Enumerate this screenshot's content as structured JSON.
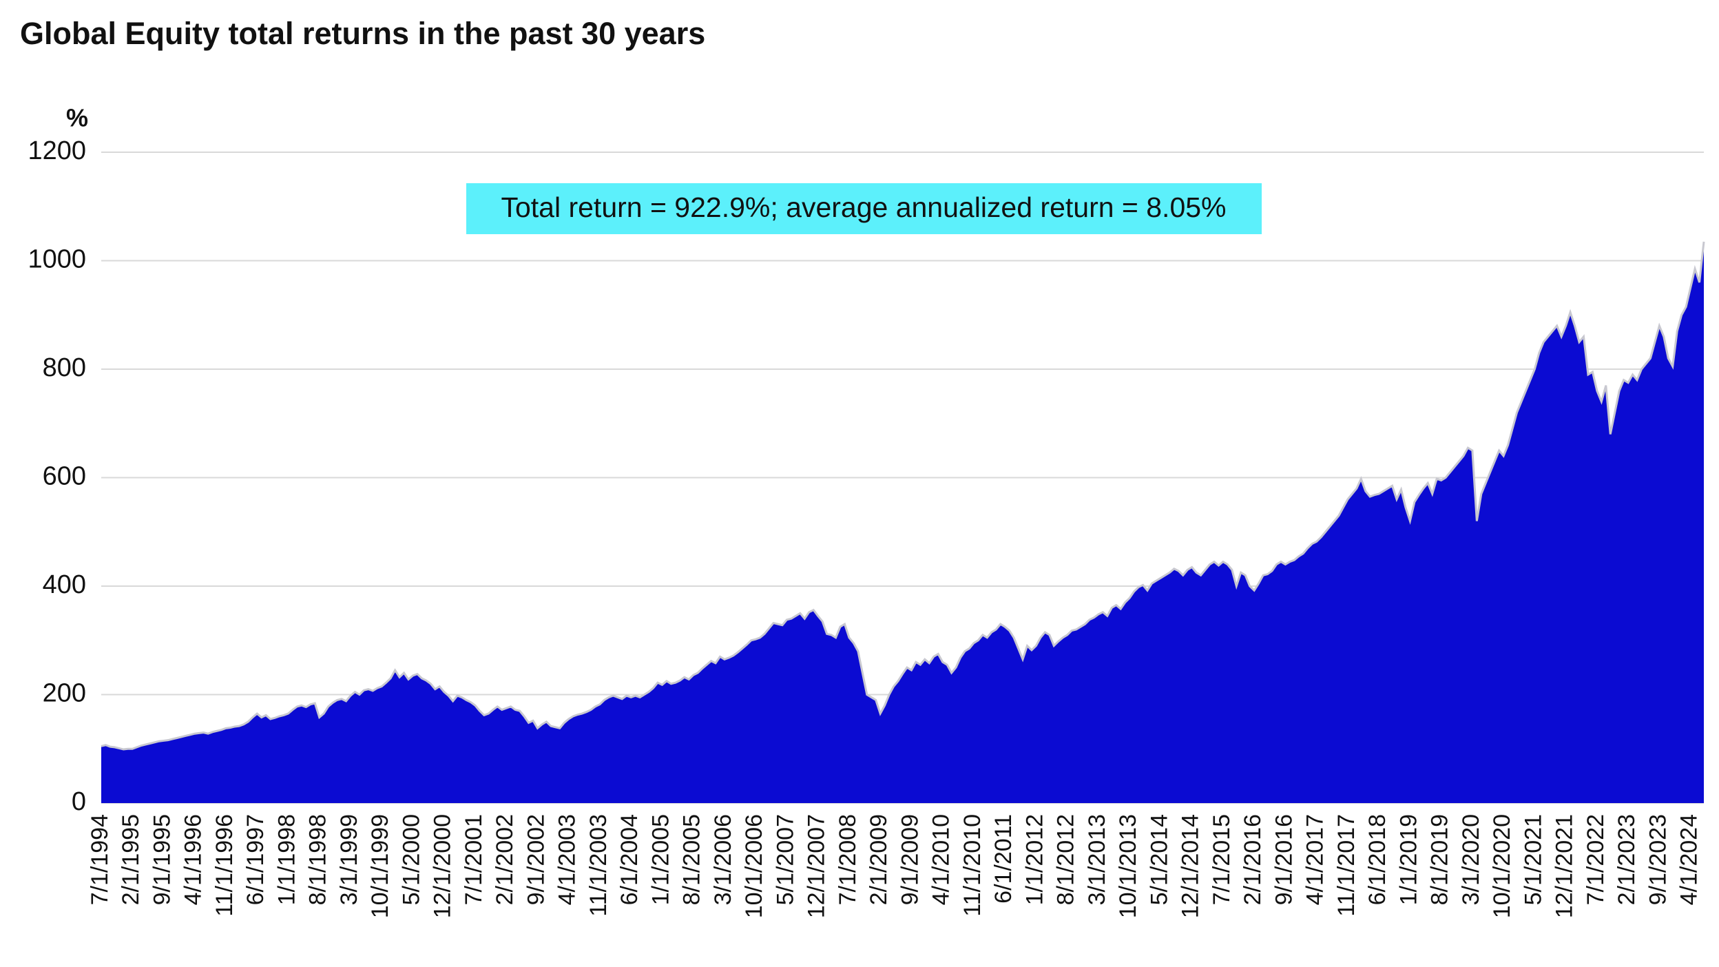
{
  "chart_data": {
    "type": "area",
    "title": "Global Equity total returns in the past 30 years",
    "y_label": "%",
    "annotation": "Total return = 922.9%; average annualized return = 8.05%",
    "ylim": [
      0,
      1200
    ],
    "yticks": [
      0,
      200,
      400,
      600,
      800,
      1000,
      1200
    ],
    "grid": true,
    "categories": [
      "7/1/1994",
      null,
      null,
      null,
      null,
      null,
      null,
      "2/1/1995",
      null,
      null,
      null,
      null,
      null,
      null,
      "9/1/1995",
      null,
      null,
      null,
      null,
      null,
      null,
      "4/1/1996",
      null,
      null,
      null,
      null,
      null,
      null,
      "11/1/1996",
      null,
      null,
      null,
      null,
      null,
      null,
      "6/1/1997",
      null,
      null,
      null,
      null,
      null,
      null,
      "1/1/1998",
      null,
      null,
      null,
      null,
      null,
      null,
      "8/1/1998",
      null,
      null,
      null,
      null,
      null,
      null,
      "3/1/1999",
      null,
      null,
      null,
      null,
      null,
      null,
      "10/1/1999",
      null,
      null,
      null,
      null,
      null,
      null,
      "5/1/2000",
      null,
      null,
      null,
      null,
      null,
      null,
      "12/1/2000",
      null,
      null,
      null,
      null,
      null,
      null,
      "7/1/2001",
      null,
      null,
      null,
      null,
      null,
      null,
      "2/1/2002",
      null,
      null,
      null,
      null,
      null,
      null,
      "9/1/2002",
      null,
      null,
      null,
      null,
      null,
      null,
      "4/1/2003",
      null,
      null,
      null,
      null,
      null,
      null,
      "11/1/2003",
      null,
      null,
      null,
      null,
      null,
      null,
      "6/1/2004",
      null,
      null,
      null,
      null,
      null,
      null,
      "1/1/2005",
      null,
      null,
      null,
      null,
      null,
      null,
      "8/1/2005",
      null,
      null,
      null,
      null,
      null,
      null,
      "3/1/2006",
      null,
      null,
      null,
      null,
      null,
      null,
      "10/1/2006",
      null,
      null,
      null,
      null,
      null,
      null,
      "5/1/2007",
      null,
      null,
      null,
      null,
      null,
      null,
      "12/1/2007",
      null,
      null,
      null,
      null,
      null,
      null,
      "7/1/2008",
      null,
      null,
      null,
      null,
      null,
      null,
      "2/1/2009",
      null,
      null,
      null,
      null,
      null,
      null,
      "9/1/2009",
      null,
      null,
      null,
      null,
      null,
      null,
      "4/1/2010",
      null,
      null,
      null,
      null,
      null,
      null,
      "11/1/2010",
      null,
      null,
      null,
      null,
      null,
      null,
      "6/1/2011",
      null,
      null,
      null,
      null,
      null,
      null,
      "1/1/2012",
      null,
      null,
      null,
      null,
      null,
      null,
      "8/1/2012",
      null,
      null,
      null,
      null,
      null,
      null,
      "3/1/2013",
      null,
      null,
      null,
      null,
      null,
      null,
      "10/1/2013",
      null,
      null,
      null,
      null,
      null,
      null,
      "5/1/2014",
      null,
      null,
      null,
      null,
      null,
      null,
      "12/1/2014",
      null,
      null,
      null,
      null,
      null,
      null,
      "7/1/2015",
      null,
      null,
      null,
      null,
      null,
      null,
      "2/1/2016",
      null,
      null,
      null,
      null,
      null,
      null,
      "9/1/2016",
      null,
      null,
      null,
      null,
      null,
      null,
      "4/1/2017",
      null,
      null,
      null,
      null,
      null,
      null,
      "11/1/2017",
      null,
      null,
      null,
      null,
      null,
      null,
      "6/1/2018",
      null,
      null,
      null,
      null,
      null,
      null,
      "1/1/2019",
      null,
      null,
      null,
      null,
      null,
      null,
      "8/1/2019",
      null,
      null,
      null,
      null,
      null,
      null,
      "3/1/2020",
      null,
      null,
      null,
      null,
      null,
      null,
      "10/1/2020",
      null,
      null,
      null,
      null,
      null,
      null,
      "5/1/2021",
      null,
      null,
      null,
      null,
      null,
      null,
      "12/1/2021",
      null,
      null,
      null,
      null,
      null,
      null,
      "7/1/2022",
      null,
      null,
      null,
      null,
      null,
      null,
      "2/1/2023",
      null,
      null,
      null,
      null,
      null,
      null,
      "9/1/2023",
      null,
      null,
      null,
      null,
      null,
      null,
      "4/1/2024",
      null,
      null,
      null
    ],
    "series": [
      {
        "color": "#0b0bd2",
        "values": [
          105,
          107,
          104,
          103,
          101,
          99,
          100,
          100,
          103,
          106,
          108,
          110,
          112,
          114,
          115,
          116,
          118,
          120,
          122,
          124,
          126,
          128,
          129,
          130,
          128,
          131,
          133,
          135,
          138,
          139,
          141,
          142,
          145,
          150,
          158,
          165,
          158,
          162,
          155,
          157,
          160,
          162,
          165,
          172,
          178,
          180,
          177,
          182,
          184,
          158,
          165,
          178,
          185,
          190,
          192,
          188,
          198,
          205,
          200,
          208,
          210,
          207,
          212,
          215,
          222,
          230,
          245,
          232,
          240,
          228,
          235,
          238,
          230,
          226,
          220,
          210,
          215,
          205,
          198,
          188,
          198,
          195,
          190,
          186,
          180,
          170,
          162,
          165,
          172,
          178,
          172,
          175,
          178,
          172,
          170,
          160,
          148,
          152,
          138,
          145,
          150,
          142,
          140,
          138,
          148,
          155,
          160,
          163,
          165,
          168,
          172,
          178,
          182,
          190,
          195,
          198,
          195,
          192,
          198,
          195,
          198,
          195,
          200,
          205,
          212,
          222,
          218,
          225,
          220,
          222,
          226,
          232,
          228,
          236,
          240,
          248,
          255,
          262,
          258,
          270,
          265,
          268,
          272,
          278,
          285,
          292,
          300,
          302,
          305,
          312,
          322,
          332,
          330,
          328,
          338,
          340,
          345,
          350,
          340,
          352,
          356,
          345,
          335,
          312,
          310,
          305,
          325,
          330,
          305,
          295,
          280,
          240,
          200,
          195,
          190,
          165,
          180,
          200,
          215,
          225,
          238,
          250,
          245,
          260,
          255,
          265,
          258,
          270,
          275,
          260,
          255,
          240,
          250,
          268,
          280,
          285,
          295,
          300,
          310,
          305,
          315,
          320,
          330,
          325,
          318,
          305,
          285,
          265,
          290,
          282,
          290,
          305,
          315,
          310,
          290,
          298,
          305,
          310,
          318,
          320,
          325,
          330,
          338,
          342,
          348,
          352,
          345,
          360,
          365,
          358,
          370,
          378,
          390,
          398,
          402,
          392,
          405,
          410,
          415,
          420,
          425,
          432,
          428,
          420,
          430,
          435,
          425,
          420,
          430,
          440,
          445,
          438,
          445,
          440,
          430,
          400,
          425,
          420,
          400,
          392,
          405,
          420,
          422,
          428,
          440,
          445,
          440,
          445,
          448,
          455,
          460,
          470,
          478,
          482,
          490,
          500,
          510,
          520,
          530,
          545,
          560,
          570,
          580,
          598,
          575,
          565,
          568,
          570,
          575,
          580,
          585,
          560,
          578,
          545,
          520,
          555,
          568,
          580,
          590,
          570,
          598,
          595,
          600,
          610,
          620,
          630,
          640,
          655,
          650,
          520,
          570,
          590,
          610,
          630,
          650,
          640,
          660,
          690,
          720,
          740,
          760,
          780,
          800,
          830,
          850,
          860,
          870,
          880,
          860,
          880,
          905,
          880,
          850,
          860,
          790,
          795,
          760,
          740,
          770,
          680,
          720,
          760,
          780,
          775,
          790,
          780,
          800,
          810,
          820,
          850,
          880,
          860,
          820,
          805,
          870,
          900,
          915,
          950,
          985,
          960,
          1035
        ]
      }
    ]
  }
}
